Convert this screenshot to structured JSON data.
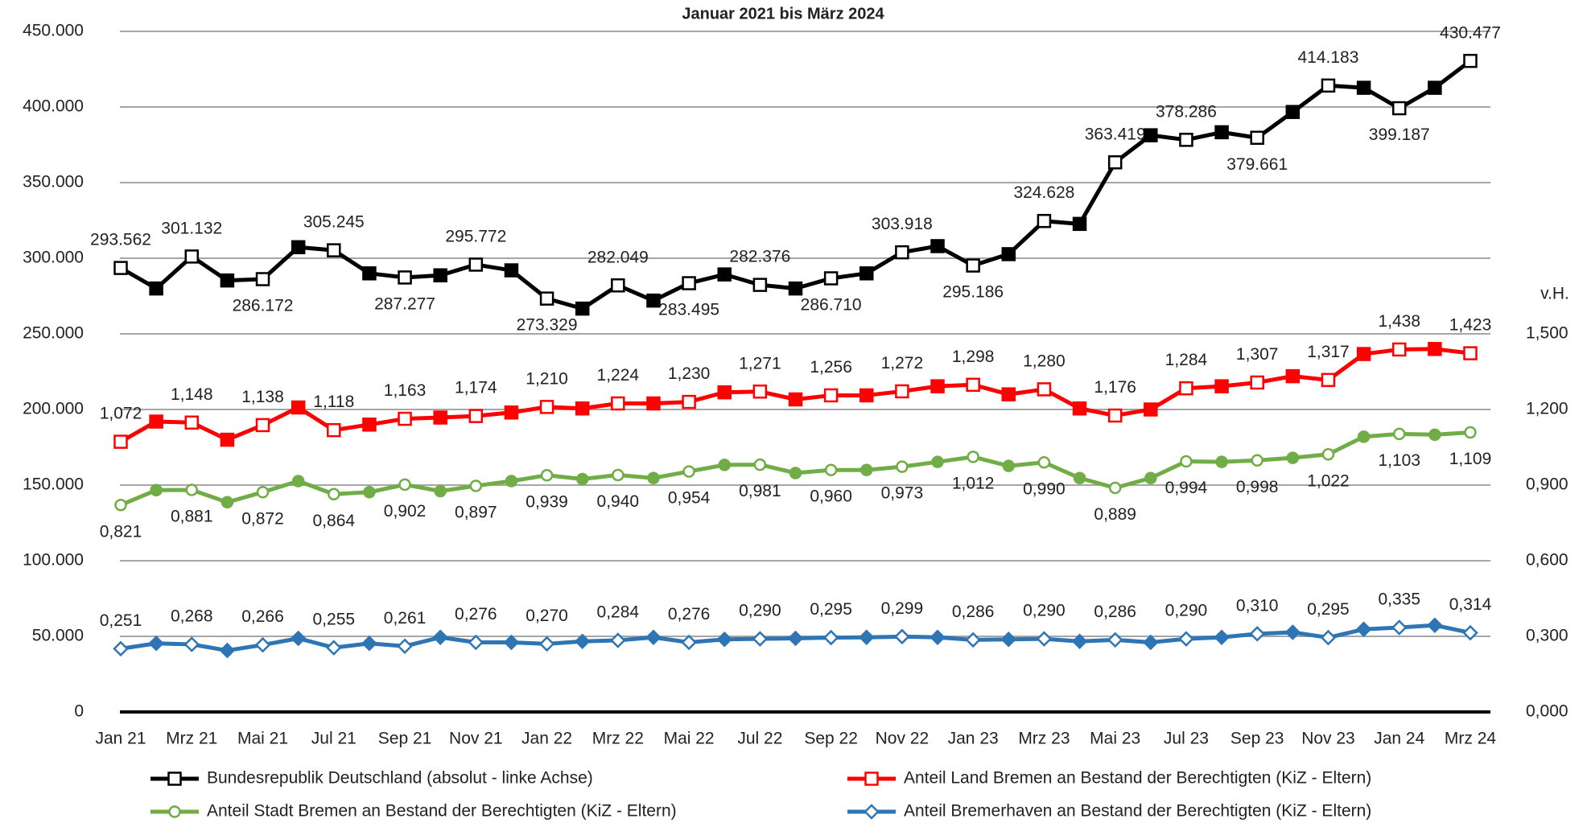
{
  "chart_data": {
    "type": "line",
    "title": "Januar 2021 bis März 2024",
    "y2label": "v.H.",
    "categories": [
      "Jan 21",
      null,
      "Mrz 21",
      null,
      "Mai 21",
      null,
      "Jul 21",
      null,
      "Sep 21",
      null,
      "Nov 21",
      null,
      "Jan 22",
      null,
      "Mrz 22",
      null,
      "Mai 22",
      null,
      "Jul 22",
      null,
      "Sep 22",
      null,
      "Nov 22",
      null,
      "Jan 23",
      null,
      "Mrz 23",
      null,
      "Mai 23",
      null,
      "Jul 23",
      null,
      "Sep 23",
      null,
      "Nov 23",
      null,
      "Jan 24",
      null,
      "Mrz 24"
    ],
    "ylim": [
      0,
      450000
    ],
    "yticks": [
      0,
      {
        "value": 50000,
        "label": "50.000"
      },
      {
        "value": 100000,
        "label": "100.000"
      },
      {
        "value": 150000,
        "label": "150.000"
      },
      {
        "value": 200000,
        "label": "200.000"
      },
      {
        "value": 250000,
        "label": "250.000"
      },
      {
        "value": 300000,
        "label": "300.000"
      },
      {
        "value": 350000,
        "label": "350.000"
      },
      {
        "value": 400000,
        "label": "400.000"
      },
      {
        "value": 450000,
        "label": "450.000"
      }
    ],
    "y2lim": [
      0,
      2.7
    ],
    "y2ticks": [
      {
        "value": 0,
        "label": "0,000"
      },
      {
        "value": 0.3,
        "label": "0,300"
      },
      {
        "value": 0.6,
        "label": "0,600"
      },
      {
        "value": 0.9,
        "label": "0,900"
      },
      {
        "value": 1.2,
        "label": "1,200"
      },
      {
        "value": 1.5,
        "label": "1,500"
      }
    ],
    "grid": true,
    "legend": "bottom",
    "series": [
      {
        "name": "Bundesrepublik Deutschland (absolut - linke Achse)",
        "color": "#000000",
        "marker": "square",
        "axis": "y",
        "values": [
          293562,
          280000,
          301132,
          285300,
          286172,
          307300,
          305245,
          290000,
          287277,
          288700,
          295772,
          292000,
          273329,
          266700,
          282049,
          272000,
          283495,
          289300,
          282376,
          280000,
          286710,
          290000,
          303918,
          308000,
          295186,
          302700,
          324628,
          322700,
          363419,
          381300,
          378286,
          383300,
          379661,
          396700,
          414183,
          412700,
          399187,
          412700,
          430477
        ],
        "value_labels": [
          "293.562",
          null,
          "301.132",
          null,
          "286.172",
          null,
          "305.245",
          null,
          "287.277",
          null,
          "295.772",
          null,
          "273.329",
          null,
          "282.049",
          null,
          "283.495",
          null,
          "282.376",
          null,
          "286.710",
          null,
          "303.918",
          null,
          "295.186",
          null,
          "324.628",
          null,
          "363.419",
          null,
          "378.286",
          null,
          "379.661",
          null,
          "414.183",
          null,
          "399.187",
          null,
          "430.477"
        ]
      },
      {
        "name": "Anteil Land Bremen an Bestand der Berechtigten (KiZ - Eltern)",
        "color": "#ff0000",
        "marker": "square",
        "axis": "y2",
        "values": [
          1.072,
          1.152,
          1.148,
          1.08,
          1.138,
          1.208,
          1.118,
          1.14,
          1.163,
          1.168,
          1.174,
          1.188,
          1.21,
          1.204,
          1.224,
          1.224,
          1.23,
          1.268,
          1.271,
          1.24,
          1.256,
          1.256,
          1.272,
          1.292,
          1.298,
          1.26,
          1.28,
          1.204,
          1.176,
          1.2,
          1.284,
          1.292,
          1.307,
          1.332,
          1.317,
          1.42,
          1.438,
          1.44,
          1.423
        ],
        "value_labels": [
          "1,072",
          null,
          "1,148",
          null,
          "1,138",
          null,
          "1,118",
          null,
          "1,163",
          null,
          "1,174",
          null,
          "1,210",
          null,
          "1,224",
          null,
          "1,230",
          null,
          "1,271",
          null,
          "1,256",
          null,
          "1,272",
          null,
          "1,298",
          null,
          "1,280",
          null,
          "1,176",
          null,
          "1,284",
          null,
          "1,307",
          null,
          "1,317",
          null,
          "1,438",
          null,
          "1,423"
        ]
      },
      {
        "name": "Anteil Stadt Bremen an Bestand der Berechtigten (KiZ - Eltern)",
        "color": "#70ad47",
        "marker": "circle",
        "axis": "y2",
        "values": [
          0.821,
          0.88,
          0.881,
          0.832,
          0.872,
          0.916,
          0.864,
          0.872,
          0.902,
          0.876,
          0.897,
          0.916,
          0.939,
          0.924,
          0.94,
          0.928,
          0.954,
          0.98,
          0.981,
          0.948,
          0.96,
          0.96,
          0.973,
          0.992,
          1.012,
          0.976,
          0.99,
          0.928,
          0.889,
          0.928,
          0.994,
          0.992,
          0.998,
          1.008,
          1.022,
          1.092,
          1.103,
          1.1,
          1.109
        ],
        "value_labels": [
          "0,821",
          null,
          "0,881",
          null,
          "0,872",
          null,
          "0,864",
          null,
          "0,902",
          null,
          "0,897",
          null,
          "0,939",
          null,
          "0,940",
          null,
          "0,954",
          null,
          "0,981",
          null,
          "0,960",
          null,
          "0,973",
          null,
          "1,012",
          null,
          "0,990",
          null,
          "0,889",
          null,
          "0,994",
          null,
          "0,998",
          null,
          "1,022",
          null,
          "1,103",
          null,
          "1,109"
        ]
      },
      {
        "name": "Anteil Bremerhaven an Bestand der Berechtigten (KiZ - Eltern)",
        "color": "#2e75b6",
        "marker": "diamond",
        "axis": "y2",
        "values": [
          0.251,
          0.272,
          0.268,
          0.244,
          0.266,
          0.292,
          0.255,
          0.272,
          0.261,
          0.296,
          0.276,
          0.276,
          0.27,
          0.28,
          0.284,
          0.296,
          0.276,
          0.288,
          0.29,
          0.292,
          0.295,
          0.296,
          0.299,
          0.296,
          0.286,
          0.288,
          0.29,
          0.28,
          0.286,
          0.276,
          0.29,
          0.296,
          0.31,
          0.316,
          0.295,
          0.328,
          0.335,
          0.344,
          0.314
        ],
        "value_labels": [
          "0,251",
          null,
          "0,268",
          null,
          "0,266",
          null,
          "0,255",
          null,
          "0,261",
          null,
          "0,276",
          null,
          "0,270",
          null,
          "0,284",
          null,
          "0,276",
          null,
          "0,290",
          null,
          "0,295",
          null,
          "0,299",
          null,
          "0,286",
          null,
          "0,290",
          null,
          "0,286",
          null,
          "0,290",
          null,
          "0,310",
          null,
          "0,295",
          null,
          "0,335",
          null,
          "0,314"
        ]
      }
    ]
  }
}
